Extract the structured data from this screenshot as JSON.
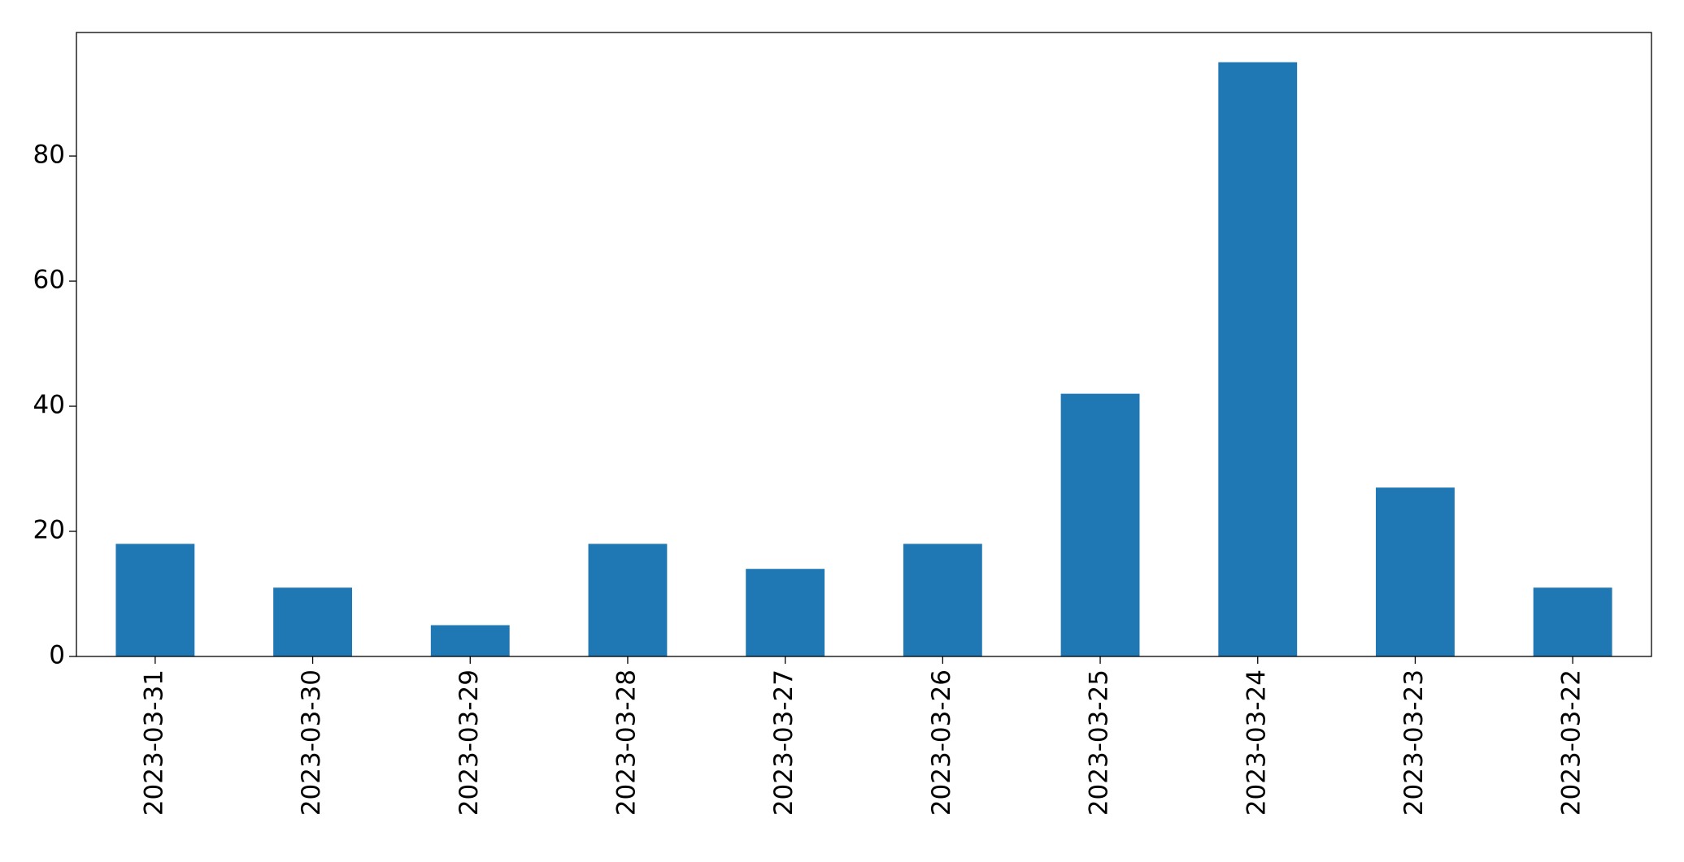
{
  "chart_data": {
    "type": "bar",
    "categories": [
      "2023-03-31",
      "2023-03-30",
      "2023-03-29",
      "2023-03-28",
      "2023-03-27",
      "2023-03-26",
      "2023-03-25",
      "2023-03-24",
      "2023-03-23",
      "2023-03-22"
    ],
    "values": [
      18,
      11,
      5,
      18,
      14,
      18,
      42,
      95,
      27,
      11
    ],
    "color": "#1f77b4",
    "ylim": [
      0,
      99.75
    ],
    "yticks": [
      0,
      20,
      40,
      60,
      80
    ],
    "grid": false
  }
}
